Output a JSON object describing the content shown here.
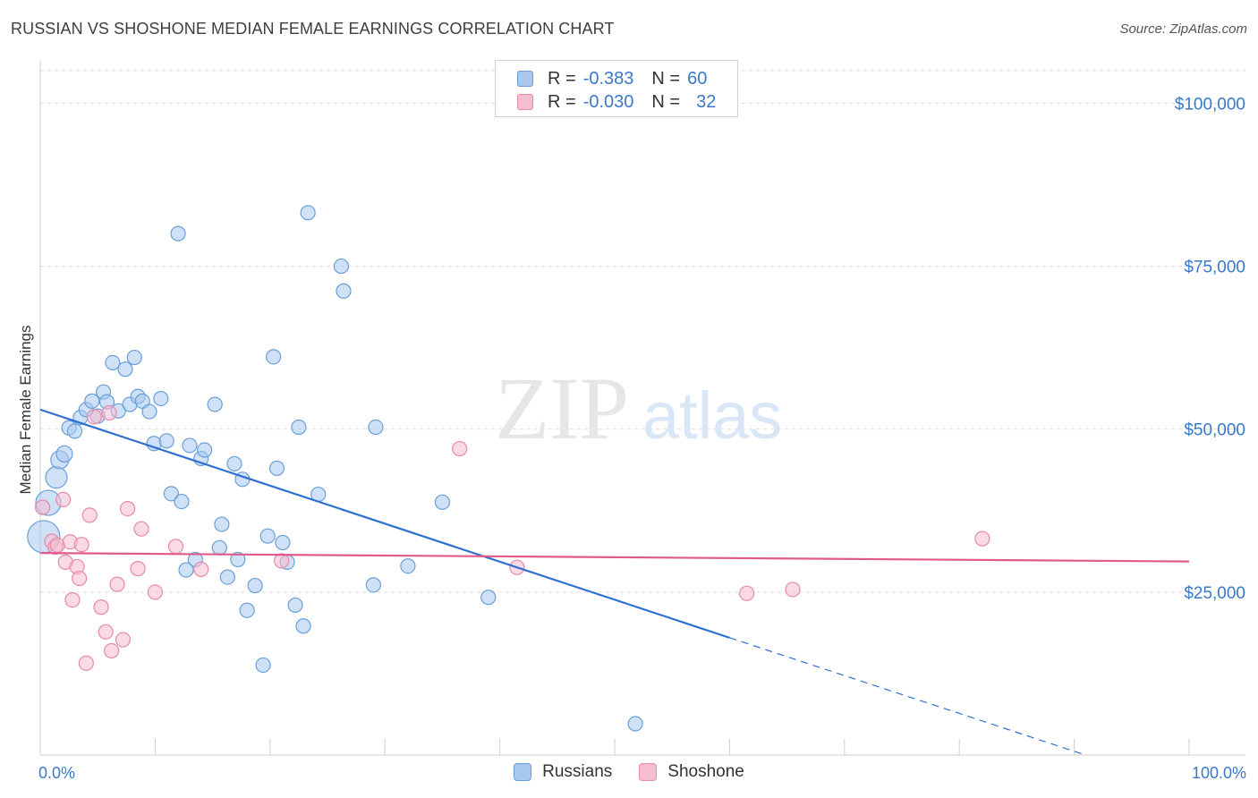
{
  "title": "RUSSIAN VS SHOSHONE MEDIAN FEMALE EARNINGS CORRELATION CHART",
  "source": "Source: ZipAtlas.com",
  "watermark": {
    "part1": "ZIP",
    "part2": "atlas"
  },
  "legend": {
    "rows": [
      {
        "r_label": "R =",
        "r_value": "-0.383",
        "n_label": "N =",
        "n_value": "60",
        "color": "#a8c8f0",
        "border": "#6a9fd8"
      },
      {
        "r_label": "R =",
        "r_value": "-0.030",
        "n_label": "N =",
        "n_value": "32",
        "color": "#f6bcd0",
        "border": "#e68aa8"
      }
    ]
  },
  "bottom_legend": [
    {
      "label": "Russians",
      "color": "#a8c8f0",
      "border": "#6a9fd8"
    },
    {
      "label": "Shoshone",
      "color": "#f6bcd0",
      "border": "#e68aa8"
    }
  ],
  "chart_data": {
    "type": "scatter",
    "ylabel": "Median Female Earnings",
    "xlabel": "",
    "xlim": [
      0,
      100
    ],
    "ylim": [
      0,
      105000
    ],
    "y_ticks": [
      {
        "value": 25000,
        "label": "$25,000"
      },
      {
        "value": 50000,
        "label": "$50,000"
      },
      {
        "value": 75000,
        "label": "$75,000"
      },
      {
        "value": 100000,
        "label": "$100,000"
      }
    ],
    "x_tick_labels": {
      "left": "0.0%",
      "right": "100.0%"
    },
    "grid": true,
    "series": [
      {
        "name": "Russians",
        "color": "#a8c8f0",
        "stroke": "#6a9fd8",
        "trend": {
          "x0": 0,
          "y0": 53000,
          "x1": 60,
          "y1": 18000,
          "dash_to_x": 91,
          "dash_to_y": 0,
          "color": "#2f6fd1"
        },
        "points": [
          [
            0.3,
            33500,
            18
          ],
          [
            0.7,
            38700,
            14
          ],
          [
            1.4,
            42600,
            12
          ],
          [
            1.7,
            45300,
            10
          ],
          [
            2.1,
            46200,
            9
          ],
          [
            2.5,
            50200,
            8
          ],
          [
            3.0,
            49700,
            8
          ],
          [
            3.5,
            51800,
            8
          ],
          [
            4.0,
            53000,
            8
          ],
          [
            4.5,
            54300,
            8
          ],
          [
            5.0,
            52000,
            8
          ],
          [
            5.5,
            55700,
            8
          ],
          [
            5.8,
            54200,
            8
          ],
          [
            6.3,
            60200,
            8
          ],
          [
            6.8,
            52800,
            8
          ],
          [
            7.4,
            59200,
            8
          ],
          [
            7.8,
            53800,
            8
          ],
          [
            8.2,
            61000,
            8
          ],
          [
            8.5,
            55000,
            8
          ],
          [
            8.9,
            54300,
            8
          ],
          [
            9.5,
            52700,
            8
          ],
          [
            9.9,
            47800,
            8
          ],
          [
            10.5,
            54700,
            8
          ],
          [
            11.0,
            48200,
            8
          ],
          [
            11.4,
            40100,
            8
          ],
          [
            12.0,
            80000,
            8
          ],
          [
            12.3,
            38900,
            8
          ],
          [
            12.7,
            28400,
            8
          ],
          [
            13.0,
            47500,
            8
          ],
          [
            13.5,
            30000,
            8
          ],
          [
            14.0,
            45500,
            8
          ],
          [
            14.3,
            46800,
            8
          ],
          [
            15.2,
            53800,
            8
          ],
          [
            15.6,
            31800,
            8
          ],
          [
            15.8,
            35400,
            8
          ],
          [
            16.3,
            27300,
            8
          ],
          [
            16.9,
            44700,
            8
          ],
          [
            17.2,
            30000,
            8
          ],
          [
            17.6,
            42300,
            8
          ],
          [
            18.0,
            22200,
            8
          ],
          [
            18.7,
            26000,
            8
          ],
          [
            19.4,
            13800,
            8
          ],
          [
            19.8,
            33600,
            8
          ],
          [
            20.3,
            61100,
            8
          ],
          [
            20.6,
            44000,
            8
          ],
          [
            21.1,
            32600,
            8
          ],
          [
            21.5,
            29600,
            8
          ],
          [
            22.2,
            23000,
            8
          ],
          [
            22.5,
            50300,
            8
          ],
          [
            22.9,
            19800,
            8
          ],
          [
            23.3,
            83200,
            8
          ],
          [
            24.2,
            40000,
            8
          ],
          [
            26.2,
            75000,
            8
          ],
          [
            26.4,
            71200,
            8
          ],
          [
            29.0,
            26100,
            8
          ],
          [
            29.2,
            50300,
            8
          ],
          [
            32.0,
            29000,
            8
          ],
          [
            35.0,
            38800,
            8
          ],
          [
            39.0,
            24200,
            8
          ],
          [
            51.8,
            4800,
            8
          ]
        ]
      },
      {
        "name": "Shoshone",
        "color": "#f6bcd0",
        "stroke": "#e68aa8",
        "trend": {
          "x0": 0,
          "y0": 31000,
          "x1": 100,
          "y1": 29700,
          "color": "#e05a8a"
        },
        "points": [
          [
            0.2,
            38000,
            8
          ],
          [
            1.0,
            32800,
            8
          ],
          [
            1.3,
            31900,
            8
          ],
          [
            1.5,
            32200,
            8
          ],
          [
            2.0,
            39200,
            8
          ],
          [
            2.2,
            29600,
            8
          ],
          [
            2.6,
            32700,
            8
          ],
          [
            2.8,
            23800,
            8
          ],
          [
            3.2,
            28900,
            8
          ],
          [
            3.4,
            27100,
            8
          ],
          [
            3.6,
            32300,
            8
          ],
          [
            4.0,
            14100,
            8
          ],
          [
            4.3,
            36800,
            8
          ],
          [
            4.7,
            51900,
            8
          ],
          [
            5.3,
            22700,
            8
          ],
          [
            5.7,
            18900,
            8
          ],
          [
            6.0,
            52500,
            8
          ],
          [
            6.2,
            16000,
            8
          ],
          [
            6.7,
            26200,
            8
          ],
          [
            7.2,
            17700,
            8
          ],
          [
            7.6,
            37800,
            8
          ],
          [
            8.5,
            28600,
            8
          ],
          [
            8.8,
            34700,
            8
          ],
          [
            10.0,
            25000,
            8
          ],
          [
            11.8,
            32000,
            8
          ],
          [
            14.0,
            28500,
            8
          ],
          [
            21.0,
            29800,
            8
          ],
          [
            36.5,
            47000,
            8
          ],
          [
            41.5,
            28800,
            8
          ],
          [
            61.5,
            24800,
            8
          ],
          [
            65.5,
            25400,
            8
          ],
          [
            82.0,
            33200,
            8
          ]
        ]
      }
    ]
  }
}
